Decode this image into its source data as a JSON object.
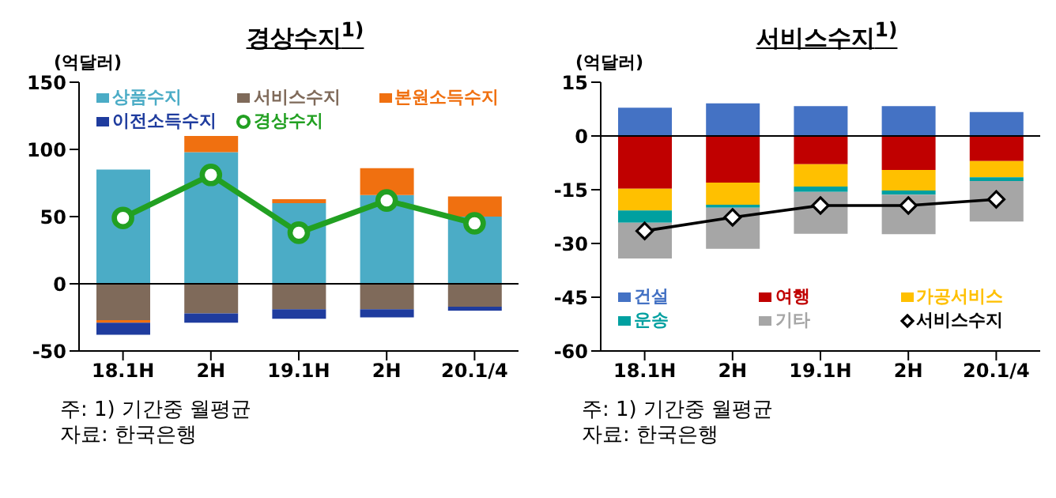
{
  "chart_data": [
    {
      "type": "bar",
      "title": "경상수지$^{1)}$",
      "ylabel": "(억달러)",
      "categories": [
        "18.1H",
        "2H",
        "19.1H",
        "2H",
        "20.1/4"
      ],
      "stacked": true,
      "ylim": [
        -50,
        150
      ],
      "yticks": [
        -50,
        0,
        50,
        100,
        150
      ],
      "legend": "top",
      "marker": "circle",
      "ref_lines": [
        {
          "axis": "y",
          "value": 0,
          "color": "#000000"
        }
      ],
      "series": [
        {
          "name": "상품수지",
          "color": "#4bacc6",
          "values": [
            85,
            98,
            60,
            66,
            50
          ]
        },
        {
          "name": "서비스수지",
          "color": "#7f6a5a",
          "values": [
            -27,
            -22,
            -19,
            -19,
            -17
          ]
        },
        {
          "name": "본원소득수지",
          "color": "#f07010",
          "values": [
            -2,
            12,
            3,
            20,
            15
          ]
        },
        {
          "name": "이전소득수지",
          "color": "#1f3c9e",
          "values": [
            -9,
            -7,
            -7,
            -6,
            -3
          ]
        },
        {
          "name": "경상수지",
          "type": "line",
          "color": "#22a022",
          "values": [
            49,
            81,
            38,
            62,
            45
          ]
        }
      ],
      "annotations": [
        "주: 1) 기간중 월평균",
        "자료: 한국은행"
      ]
    },
    {
      "type": "bar",
      "title": "서비스수지$^{1)}$",
      "ylabel": "(억달러)",
      "categories": [
        "18.1H",
        "2H",
        "19.1H",
        "2H",
        "20.1/4"
      ],
      "stacked": true,
      "ylim": [
        -60,
        15
      ],
      "yticks": [
        -60,
        -45,
        -30,
        -15,
        0,
        15
      ],
      "legend": "bottom",
      "marker": "diamond",
      "ref_lines": [
        {
          "axis": "y",
          "value": 0,
          "color": "#000000"
        }
      ],
      "series": [
        {
          "name": "건설",
          "color": "#4472c4",
          "values": [
            7.9,
            9.1,
            8.3,
            8.3,
            6.7
          ]
        },
        {
          "name": "여행",
          "color": "#c00000",
          "values": [
            -14.7,
            -13,
            -7.9,
            -9.5,
            -7
          ]
        },
        {
          "name": "가공서비스",
          "color": "#ffc000",
          "values": [
            -6.1,
            -6.2,
            -6.2,
            -5.7,
            -4.5
          ]
        },
        {
          "name": "운송",
          "color": "#00a0a0",
          "values": [
            -3.4,
            -0.8,
            -1.5,
            -1.2,
            -1.1
          ]
        },
        {
          "name": "기타",
          "color": "#a6a6a6",
          "values": [
            -10,
            -11.5,
            -11.7,
            -11,
            -11.3
          ]
        },
        {
          "name": "서비스수지",
          "type": "line",
          "color": "#000000",
          "values": [
            -26.5,
            -22.7,
            -19.4,
            -19.4,
            -17.7
          ]
        }
      ],
      "annotations": [
        "주: 1) 기간중 월평균",
        "자료: 한국은행"
      ]
    }
  ]
}
